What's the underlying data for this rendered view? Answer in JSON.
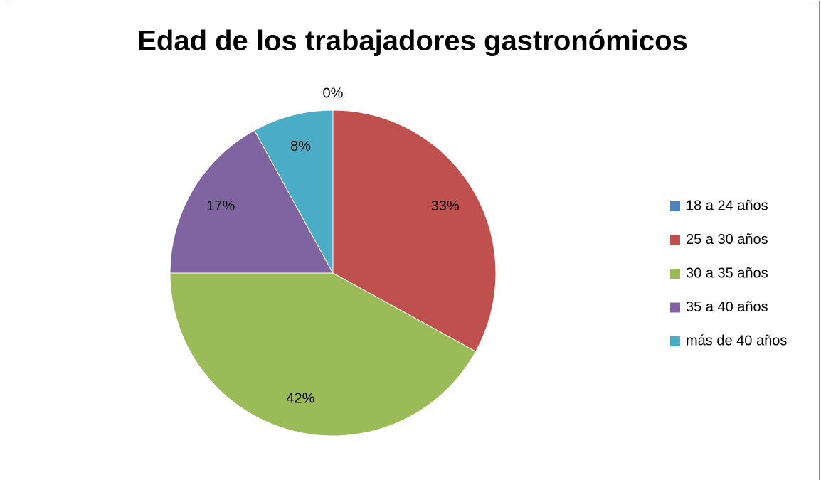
{
  "chart_data": {
    "type": "pie",
    "title": "Edad de los trabajadores gastronómicos",
    "categories": [
      "18 a 24 años",
      "25 a 30 años",
      "30 a 35 años",
      "35 a 40 años",
      "más de 40 años"
    ],
    "values": [
      0,
      33,
      42,
      17,
      8
    ],
    "value_labels": [
      "0%",
      "33%",
      "42%",
      "17%",
      "8%"
    ],
    "colors": [
      "#4f81bd",
      "#c0504d",
      "#9bbb59",
      "#8064a2",
      "#4bacc6"
    ],
    "legend": "right"
  }
}
